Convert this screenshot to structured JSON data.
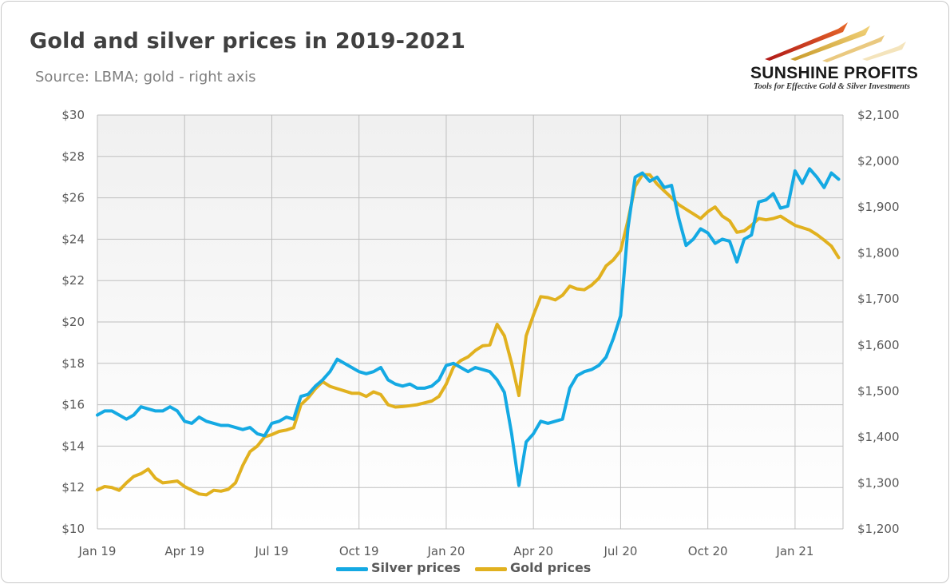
{
  "header": {
    "title": "Gold and silver prices in 2019-2021",
    "subtitle": "Source: LBMA; gold - right axis"
  },
  "logo": {
    "brand": "SUNSHINE PROFITS",
    "tagline": "Tools for Effective Gold & Silver Investments"
  },
  "colors": {
    "silver": "#14a9e3",
    "gold": "#e1b11f",
    "plot_top": "#f0f0f0",
    "plot_bottom": "#ffffff",
    "grid": "#bfbfbf"
  },
  "chart_data": {
    "type": "line",
    "title": "Gold and silver prices in 2019-2021",
    "subtitle": "Source: LBMA; gold - right axis",
    "x_ticks": [
      "Jan 19",
      "Apr 19",
      "Jul 19",
      "Oct 19",
      "Jan 20",
      "Apr 20",
      "Jul 20",
      "Oct 20",
      "Jan 21"
    ],
    "x_tick_months": [
      0,
      3,
      6,
      9,
      12,
      15,
      18,
      21,
      24
    ],
    "xlim_months": [
      0,
      25.65
    ],
    "y_left": {
      "ticks": [
        "$10",
        "$12",
        "$14",
        "$16",
        "$18",
        "$20",
        "$22",
        "$24",
        "$26",
        "$28",
        "$30"
      ],
      "lim": [
        10,
        30
      ]
    },
    "y_right": {
      "ticks": [
        "$1,200",
        "$1,300",
        "$1,400",
        "$1,500",
        "$1,600",
        "$1,700",
        "$1,800",
        "$1,900",
        "$2,000",
        "$2,100"
      ],
      "lim": [
        1200,
        2100
      ]
    },
    "grid": true,
    "legend_position": "bottom",
    "series": [
      {
        "name": "Silver prices",
        "axis": "left",
        "points": [
          [
            0.0,
            15.5
          ],
          [
            0.25,
            15.7
          ],
          [
            0.5,
            15.7
          ],
          [
            0.75,
            15.5
          ],
          [
            1.0,
            15.3
          ],
          [
            1.25,
            15.5
          ],
          [
            1.5,
            15.9
          ],
          [
            1.75,
            15.8
          ],
          [
            2.0,
            15.7
          ],
          [
            2.25,
            15.7
          ],
          [
            2.5,
            15.9
          ],
          [
            2.75,
            15.7
          ],
          [
            3.0,
            15.2
          ],
          [
            3.25,
            15.1
          ],
          [
            3.5,
            15.4
          ],
          [
            3.75,
            15.2
          ],
          [
            4.0,
            15.1
          ],
          [
            4.25,
            15.0
          ],
          [
            4.5,
            15.0
          ],
          [
            4.75,
            14.9
          ],
          [
            5.0,
            14.8
          ],
          [
            5.25,
            14.9
          ],
          [
            5.5,
            14.6
          ],
          [
            5.75,
            14.5
          ],
          [
            6.0,
            15.1
          ],
          [
            6.25,
            15.2
          ],
          [
            6.5,
            15.4
          ],
          [
            6.75,
            15.3
          ],
          [
            7.0,
            16.4
          ],
          [
            7.25,
            16.5
          ],
          [
            7.5,
            16.9
          ],
          [
            7.75,
            17.2
          ],
          [
            8.0,
            17.6
          ],
          [
            8.25,
            18.2
          ],
          [
            8.5,
            18.0
          ],
          [
            8.75,
            17.8
          ],
          [
            9.0,
            17.6
          ],
          [
            9.25,
            17.5
          ],
          [
            9.5,
            17.6
          ],
          [
            9.75,
            17.8
          ],
          [
            10.0,
            17.2
          ],
          [
            10.25,
            17.0
          ],
          [
            10.5,
            16.9
          ],
          [
            10.75,
            17.0
          ],
          [
            11.0,
            16.8
          ],
          [
            11.25,
            16.8
          ],
          [
            11.5,
            16.9
          ],
          [
            11.75,
            17.2
          ],
          [
            12.0,
            17.9
          ],
          [
            12.25,
            18.0
          ],
          [
            12.5,
            17.8
          ],
          [
            12.75,
            17.6
          ],
          [
            13.0,
            17.8
          ],
          [
            13.25,
            17.7
          ],
          [
            13.5,
            17.6
          ],
          [
            13.75,
            17.2
          ],
          [
            14.0,
            16.6
          ],
          [
            14.25,
            14.6
          ],
          [
            14.5,
            12.1
          ],
          [
            14.75,
            14.2
          ],
          [
            15.0,
            14.6
          ],
          [
            15.25,
            15.2
          ],
          [
            15.5,
            15.1
          ],
          [
            15.75,
            15.2
          ],
          [
            16.0,
            15.3
          ],
          [
            16.25,
            16.8
          ],
          [
            16.5,
            17.4
          ],
          [
            16.75,
            17.6
          ],
          [
            17.0,
            17.7
          ],
          [
            17.25,
            17.9
          ],
          [
            17.5,
            18.3
          ],
          [
            17.75,
            19.2
          ],
          [
            18.0,
            20.3
          ],
          [
            18.25,
            24.5
          ],
          [
            18.5,
            27.0
          ],
          [
            18.75,
            27.2
          ],
          [
            19.0,
            26.8
          ],
          [
            19.25,
            27.0
          ],
          [
            19.5,
            26.5
          ],
          [
            19.75,
            26.6
          ],
          [
            20.0,
            25.0
          ],
          [
            20.25,
            23.7
          ],
          [
            20.5,
            24.0
          ],
          [
            20.75,
            24.5
          ],
          [
            21.0,
            24.3
          ],
          [
            21.25,
            23.8
          ],
          [
            21.5,
            24.0
          ],
          [
            21.75,
            23.9
          ],
          [
            22.0,
            22.9
          ],
          [
            22.25,
            24.0
          ],
          [
            22.5,
            24.2
          ],
          [
            22.75,
            25.8
          ],
          [
            23.0,
            25.9
          ],
          [
            23.25,
            26.2
          ],
          [
            23.5,
            25.5
          ],
          [
            23.75,
            25.6
          ],
          [
            24.0,
            27.3
          ],
          [
            24.25,
            26.7
          ],
          [
            24.5,
            27.4
          ],
          [
            24.75,
            27.0
          ],
          [
            25.0,
            26.5
          ],
          [
            25.25,
            27.2
          ],
          [
            25.5,
            26.9
          ]
        ]
      },
      {
        "name": "Gold prices",
        "axis": "right",
        "points": [
          [
            0.0,
            1285
          ],
          [
            0.25,
            1292
          ],
          [
            0.5,
            1290
          ],
          [
            0.75,
            1284
          ],
          [
            1.0,
            1300
          ],
          [
            1.25,
            1314
          ],
          [
            1.5,
            1320
          ],
          [
            1.75,
            1330
          ],
          [
            2.0,
            1310
          ],
          [
            2.25,
            1300
          ],
          [
            2.5,
            1302
          ],
          [
            2.75,
            1304
          ],
          [
            3.0,
            1292
          ],
          [
            3.25,
            1284
          ],
          [
            3.5,
            1276
          ],
          [
            3.75,
            1274
          ],
          [
            4.0,
            1284
          ],
          [
            4.25,
            1282
          ],
          [
            4.5,
            1286
          ],
          [
            4.75,
            1300
          ],
          [
            5.0,
            1338
          ],
          [
            5.25,
            1368
          ],
          [
            5.5,
            1380
          ],
          [
            5.75,
            1400
          ],
          [
            6.0,
            1405
          ],
          [
            6.25,
            1412
          ],
          [
            6.5,
            1415
          ],
          [
            6.75,
            1420
          ],
          [
            7.0,
            1470
          ],
          [
            7.25,
            1485
          ],
          [
            7.5,
            1505
          ],
          [
            7.75,
            1520
          ],
          [
            8.0,
            1510
          ],
          [
            8.25,
            1505
          ],
          [
            8.5,
            1500
          ],
          [
            8.75,
            1495
          ],
          [
            9.0,
            1495
          ],
          [
            9.25,
            1488
          ],
          [
            9.5,
            1498
          ],
          [
            9.75,
            1492
          ],
          [
            10.0,
            1470
          ],
          [
            10.25,
            1465
          ],
          [
            10.5,
            1466
          ],
          [
            10.75,
            1468
          ],
          [
            11.0,
            1470
          ],
          [
            11.25,
            1474
          ],
          [
            11.5,
            1478
          ],
          [
            11.75,
            1488
          ],
          [
            12.0,
            1515
          ],
          [
            12.25,
            1552
          ],
          [
            12.5,
            1566
          ],
          [
            12.75,
            1574
          ],
          [
            13.0,
            1588
          ],
          [
            13.25,
            1598
          ],
          [
            13.5,
            1600
          ],
          [
            13.75,
            1645
          ],
          [
            14.0,
            1620
          ],
          [
            14.25,
            1560
          ],
          [
            14.5,
            1490
          ],
          [
            14.75,
            1620
          ],
          [
            15.0,
            1665
          ],
          [
            15.25,
            1705
          ],
          [
            15.5,
            1703
          ],
          [
            15.75,
            1698
          ],
          [
            16.0,
            1708
          ],
          [
            16.25,
            1728
          ],
          [
            16.5,
            1722
          ],
          [
            16.75,
            1720
          ],
          [
            17.0,
            1730
          ],
          [
            17.25,
            1745
          ],
          [
            17.5,
            1772
          ],
          [
            17.75,
            1785
          ],
          [
            18.0,
            1805
          ],
          [
            18.25,
            1870
          ],
          [
            18.5,
            1945
          ],
          [
            18.75,
            1970
          ],
          [
            19.0,
            1970
          ],
          [
            19.25,
            1950
          ],
          [
            19.5,
            1935
          ],
          [
            19.75,
            1920
          ],
          [
            20.0,
            1905
          ],
          [
            20.25,
            1895
          ],
          [
            20.5,
            1885
          ],
          [
            20.75,
            1875
          ],
          [
            21.0,
            1890
          ],
          [
            21.25,
            1900
          ],
          [
            21.5,
            1880
          ],
          [
            21.75,
            1870
          ],
          [
            22.0,
            1845
          ],
          [
            22.25,
            1848
          ],
          [
            22.5,
            1860
          ],
          [
            22.75,
            1875
          ],
          [
            23.0,
            1872
          ],
          [
            23.25,
            1875
          ],
          [
            23.5,
            1880
          ],
          [
            23.75,
            1870
          ],
          [
            24.0,
            1860
          ],
          [
            24.25,
            1855
          ],
          [
            24.5,
            1850
          ],
          [
            24.75,
            1840
          ],
          [
            25.0,
            1828
          ],
          [
            25.25,
            1815
          ],
          [
            25.5,
            1790
          ]
        ]
      }
    ]
  },
  "legend": [
    {
      "label": "Silver prices"
    },
    {
      "label": "Gold prices"
    }
  ]
}
